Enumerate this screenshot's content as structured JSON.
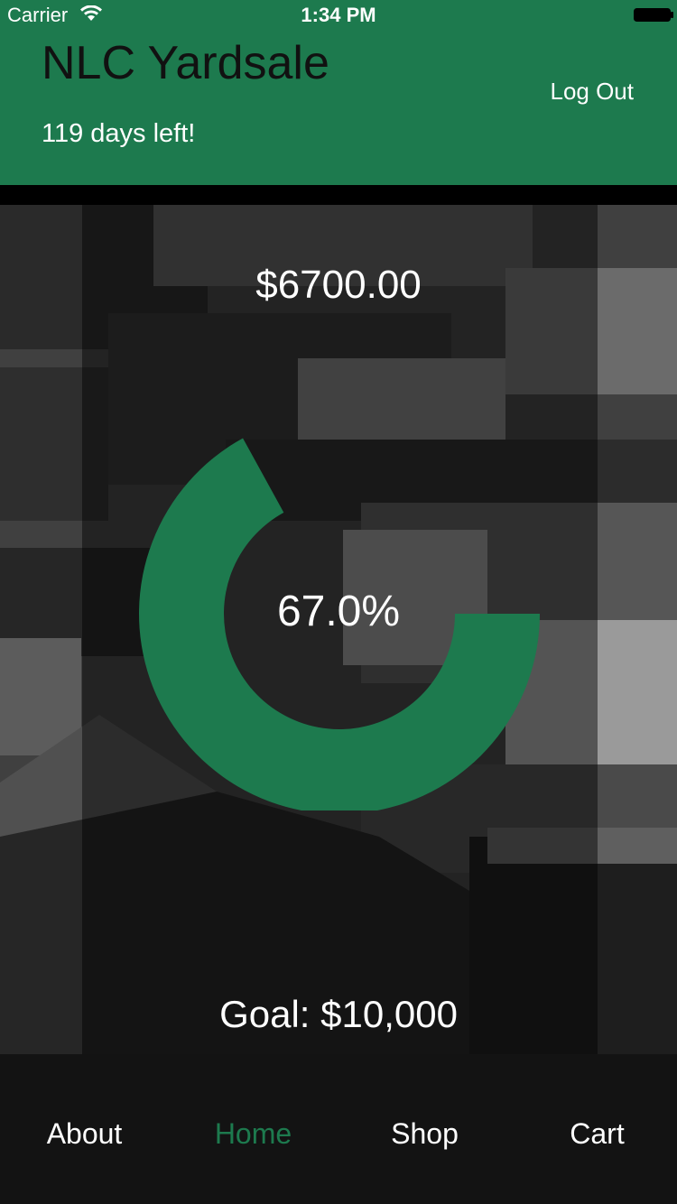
{
  "status_bar": {
    "carrier": "Carrier",
    "time": "1:34 PM"
  },
  "header": {
    "title": "NLC Yardsale",
    "days_left": "119 days left!",
    "logout_label": "Log Out"
  },
  "progress": {
    "raised_amount": "$6700.00",
    "percent_label": "67.0%",
    "fraction": 0.67,
    "goal_label": "Goal: $10,000"
  },
  "tabs": [
    {
      "label": "About"
    },
    {
      "label": "Home"
    },
    {
      "label": "Shop"
    },
    {
      "label": "Cart"
    }
  ],
  "colors": {
    "accent": "#1d7a4e",
    "tabbar": "#131313"
  }
}
